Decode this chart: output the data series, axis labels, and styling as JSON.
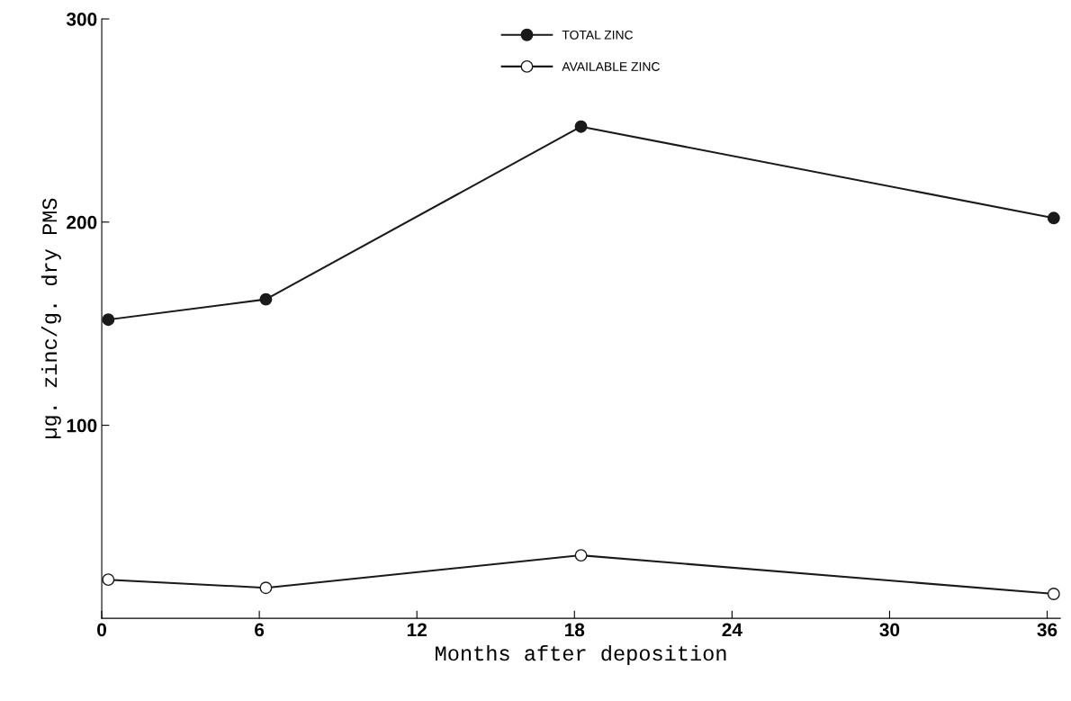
{
  "chart_data": {
    "type": "line",
    "xlabel": "Months after deposition",
    "ylabel": "µg. zinc/g. dry PMS",
    "x": [
      0.25,
      6.25,
      18.25,
      36.25
    ],
    "series": [
      {
        "name": "TOTAL ZINC",
        "color": "#1a1a1a",
        "values": [
          152,
          162,
          247,
          202
        ],
        "marker": "circle"
      },
      {
        "name": "AVAILABLE ZINC",
        "color": "#1a1a1a",
        "values": [
          24,
          20,
          36,
          17
        ],
        "marker": "circle"
      }
    ],
    "xlim": [
      0,
      36.5
    ],
    "xticks": [
      0,
      6,
      12,
      18,
      24,
      30,
      36
    ],
    "ylim": [
      5,
      300
    ],
    "yticks": [
      100,
      200,
      300
    ],
    "grid": false,
    "legend": "top",
    "line_style": "solid"
  }
}
